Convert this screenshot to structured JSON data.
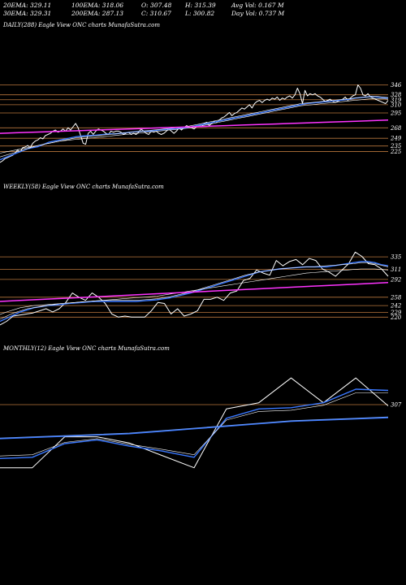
{
  "header": {
    "ema20": "20EMA: 329.11",
    "ema30": "30EMA: 329.31",
    "ema100": "100EMA: 318.06",
    "ema200": "200EMA: 287.13",
    "open": "O: 307.48",
    "close": "C: 310.67",
    "high": "H: 315.39",
    "low": "L: 300.82",
    "avg_vol": "Avg Vol: 0.167 M",
    "day_vol": "Day Vol: 0.737 M"
  },
  "colors": {
    "background": "#000000",
    "price": "#ffffff",
    "ema_blue": "#3a78ff",
    "long_term": "#ff33ff",
    "level": "#b8763c"
  },
  "chart_data": [
    {
      "type": "line",
      "title": "DAILY(288) Eagle   View  ONC charts MunafaSutra.com",
      "ylim": [
        205,
        360
      ],
      "levels": [
        346,
        328,
        319,
        310,
        295,
        268,
        249,
        235,
        225
      ],
      "series": [
        {
          "values": [
            205,
            208,
            212,
            214,
            216,
            218,
            222,
            228,
            224,
            232,
            233,
            236,
            232,
            240,
            244,
            246,
            250,
            248,
            254,
            256,
            258,
            262,
            264,
            260,
            262,
            266,
            262,
            268,
            264,
            270,
            276,
            268,
            254,
            240,
            238,
            258,
            262,
            256,
            262,
            266,
            264,
            262,
            258,
            256,
            262,
            260,
            262,
            262,
            260,
            256,
            258,
            260,
            256,
            258,
            256,
            260,
            266,
            262,
            258,
            256,
            262,
            260,
            262,
            258,
            256,
            258,
            262,
            266,
            262,
            258,
            262,
            268,
            264,
            268,
            272,
            270,
            268,
            266,
            270,
            272,
            270,
            276,
            278,
            272,
            276,
            280,
            278,
            282,
            286,
            288,
            292,
            296,
            290,
            294,
            296,
            300,
            304,
            302,
            306,
            310,
            304,
            312,
            316,
            318,
            314,
            318,
            320,
            318,
            322,
            320,
            324,
            318,
            322,
            320,
            324,
            326,
            322,
            328,
            340,
            330,
            312,
            336,
            326,
            330,
            328,
            330,
            326,
            324,
            320,
            316,
            318,
            320,
            316,
            314,
            316,
            318,
            320,
            324,
            318,
            322,
            326,
            328,
            346,
            340,
            328,
            326,
            330,
            324,
            322,
            320,
            318,
            316,
            314,
            312,
            318
          ]
        },
        {
          "values": [
            210,
            214,
            218,
            222,
            226,
            230,
            232,
            234,
            238,
            242,
            244,
            246,
            248,
            250,
            252,
            253,
            254,
            254,
            255,
            256,
            257,
            257,
            258,
            259,
            260,
            261,
            262,
            262,
            263,
            264,
            265,
            266,
            266,
            267,
            268,
            270,
            272,
            274,
            276,
            278,
            280,
            282,
            284,
            286,
            288,
            290,
            292,
            294,
            296,
            298,
            300,
            302,
            304,
            306,
            308,
            310,
            312,
            313,
            314,
            315,
            316,
            317,
            318,
            319,
            320,
            322,
            323,
            324,
            325,
            324,
            323,
            322
          ]
        },
        {
          "values": [
            215,
            218,
            221,
            224,
            227,
            230,
            233,
            236,
            238,
            240,
            242,
            244,
            246,
            248,
            250,
            251,
            252,
            253,
            254,
            255,
            256,
            257,
            258,
            259,
            260,
            261,
            262,
            263,
            264,
            265,
            266,
            267,
            268,
            269,
            270,
            272,
            274,
            276,
            278,
            280,
            282,
            284,
            286,
            288,
            290,
            292,
            294,
            296,
            298,
            300,
            302,
            304,
            306,
            308,
            310,
            312,
            313,
            314,
            315,
            316,
            317,
            318,
            319,
            320,
            321,
            322,
            323,
            324,
            325,
            325,
            324,
            323
          ]
        },
        {
          "values": [
            222,
            224,
            226,
            228,
            230,
            232,
            234,
            236,
            238,
            240,
            242,
            244,
            245,
            246,
            247,
            248,
            249,
            250,
            251,
            252,
            253,
            254,
            255,
            256,
            257,
            258,
            259,
            260,
            261,
            262,
            263,
            264,
            265,
            266,
            267,
            268,
            270,
            272,
            274,
            276,
            278,
            280,
            282,
            284,
            286,
            288,
            290,
            292,
            294,
            296,
            298,
            300,
            302,
            304,
            306,
            308,
            309,
            310,
            311,
            312,
            313,
            314,
            315,
            316,
            317,
            318,
            319,
            320,
            321,
            321,
            321,
            320
          ]
        },
        {
          "values": [
            258,
            259,
            260,
            261,
            262,
            263,
            264,
            265,
            266,
            267,
            268,
            269,
            270,
            271,
            272,
            273,
            274,
            275,
            276,
            277,
            278,
            279,
            280,
            281,
            282
          ]
        }
      ]
    },
    {
      "type": "line",
      "title": "WEEKLY(58) Eagle   View  ONC charts MunafaSutra.com",
      "ylim": [
        205,
        360
      ],
      "levels": [
        335,
        311,
        292,
        258,
        242,
        229,
        220
      ],
      "series": [
        {
          "values": [
            205,
            212,
            222,
            224,
            226,
            228,
            232,
            236,
            230,
            236,
            248,
            266,
            258,
            252,
            266,
            258,
            246,
            226,
            220,
            222,
            220,
            220,
            220,
            232,
            248,
            246,
            226,
            236,
            222,
            226,
            232,
            254,
            254,
            258,
            252,
            266,
            270,
            290,
            294,
            310,
            304,
            300,
            328,
            318,
            326,
            330,
            320,
            332,
            328,
            312,
            306,
            298,
            310,
            322,
            344,
            336,
            322,
            320,
            312,
            298
          ]
        },
        {
          "values": [
            212,
            218,
            224,
            230,
            234,
            238,
            240,
            242,
            243,
            244,
            246,
            247,
            248,
            249,
            250,
            250,
            250,
            250,
            250,
            250,
            250,
            251,
            252,
            253,
            255,
            257,
            260,
            263,
            266,
            270,
            274,
            278,
            282,
            286,
            290,
            294,
            298,
            302,
            306,
            308,
            310,
            312,
            313,
            314,
            315,
            316,
            316,
            316,
            316,
            318,
            320,
            322,
            324,
            326,
            326,
            324,
            320,
            318
          ]
        },
        {
          "values": [
            216,
            222,
            228,
            232,
            236,
            238,
            240,
            242,
            244,
            246,
            247,
            248,
            249,
            250,
            251,
            252,
            252,
            252,
            252,
            252,
            252,
            253,
            254,
            255,
            257,
            259,
            262,
            265,
            268,
            272,
            276,
            280,
            284,
            288,
            292,
            296,
            300,
            303,
            306,
            308,
            310,
            312,
            313,
            314,
            315,
            316,
            316,
            317,
            318,
            319,
            320,
            321,
            322,
            324,
            324,
            322,
            319,
            316
          ]
        },
        {
          "values": [
            225,
            230,
            234,
            238,
            240,
            242,
            243,
            244,
            245,
            246,
            247,
            248,
            249,
            250,
            251,
            252,
            253,
            254,
            255,
            256,
            257,
            258,
            259,
            260,
            262,
            264,
            266,
            268,
            270,
            272,
            274,
            276,
            278,
            280,
            282,
            284,
            286,
            288,
            290,
            292,
            294,
            296,
            298,
            300,
            302,
            304,
            305,
            306,
            307,
            308,
            309,
            310,
            311,
            312,
            312,
            312,
            311,
            310
          ]
        },
        {
          "values": [
            250,
            253,
            256,
            259,
            262,
            265,
            268,
            271,
            274,
            277,
            280,
            283,
            286
          ]
        }
      ]
    },
    {
      "type": "line",
      "title": "MONTHLY(12) Eagle   View  ONC charts MunafaSutra.com",
      "ylim": [
        160,
        370
      ],
      "levels": [
        307
      ],
      "series": [
        {
          "values": [
            205,
            205,
            255,
            255,
            245,
            225,
            205,
            300,
            310,
            350,
            310,
            350,
            305
          ]
        },
        {
          "values": [
            220,
            222,
            244,
            250,
            240,
            232,
            222,
            285,
            300,
            302,
            310,
            332,
            330
          ]
        },
        {
          "values": [
            224,
            226,
            246,
            252,
            243,
            235,
            226,
            282,
            296,
            298,
            306,
            326,
            326
          ]
        },
        {
          "values": [
            252,
            254,
            256,
            258,
            260,
            264,
            268,
            272,
            276,
            280,
            282,
            284,
            286
          ]
        },
        {
          "values": [
            253,
            255,
            257,
            259,
            261,
            265,
            269,
            273,
            277,
            281,
            283,
            285,
            287
          ]
        }
      ]
    }
  ]
}
